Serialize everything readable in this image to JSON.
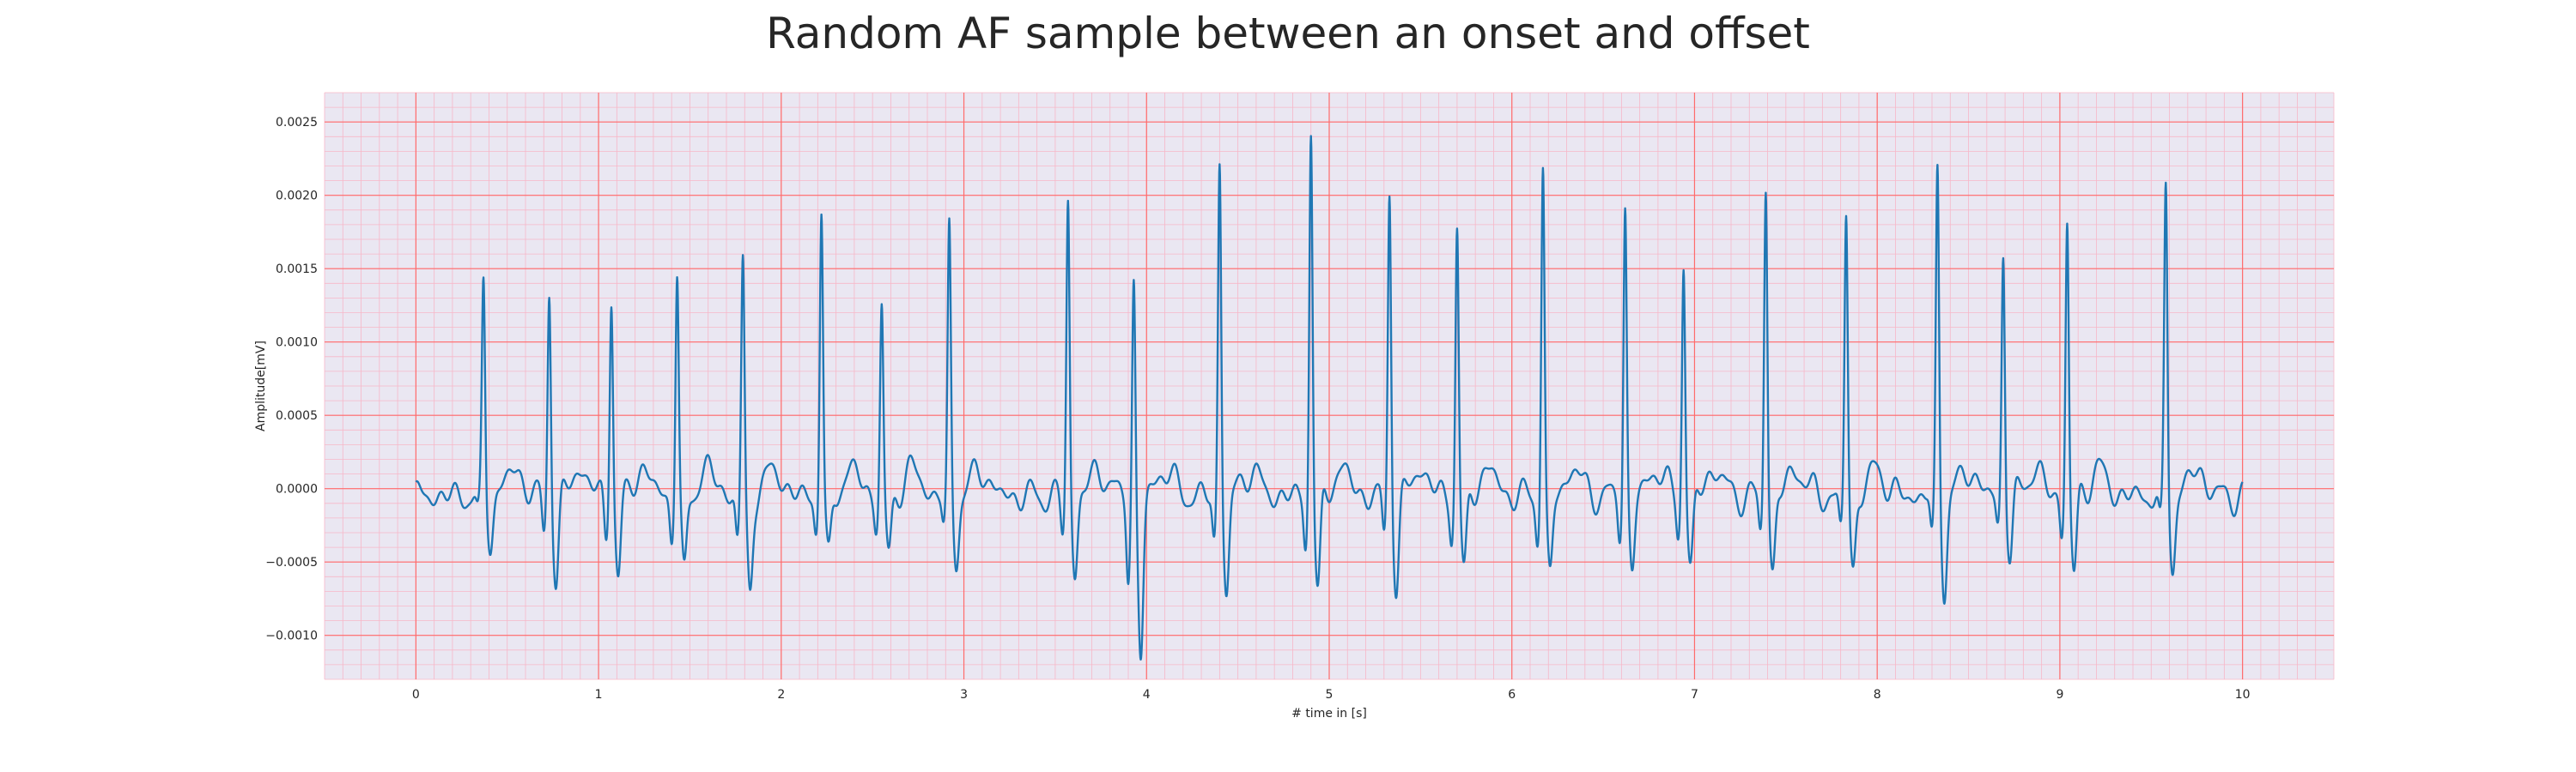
{
  "chart_data": {
    "type": "line",
    "title": "Random AF sample between an onset and offset",
    "xlabel": "# time in [s]",
    "ylabel": "Amplitude[mV]",
    "xlim": [
      -0.5,
      10.5
    ],
    "ylim": [
      -0.0013,
      0.0027
    ],
    "x_ticks": [
      0,
      1,
      2,
      3,
      4,
      5,
      6,
      7,
      8,
      9,
      10
    ],
    "x_tick_labels": [
      "0",
      "1",
      "2",
      "3",
      "4",
      "5",
      "6",
      "7",
      "8",
      "9",
      "10"
    ],
    "y_ticks": [
      -0.001,
      -0.0005,
      0.0,
      0.0005,
      0.001,
      0.0015,
      0.002,
      0.0025
    ],
    "y_tick_labels": [
      "−0.0010",
      "−0.0005",
      "0.0000",
      "0.0005",
      "0.0010",
      "0.0015",
      "0.0020",
      "0.0025"
    ],
    "grid": {
      "major": true,
      "minor": true,
      "major_color": "#ff6b6b",
      "minor_color": "#f7b7c8"
    },
    "background_color": "#eae7f2",
    "series": [
      {
        "color": "#1f77b4",
        "beats": [
          {
            "t": 0.37,
            "peak": 0.00139,
            "trough": -0.0003
          },
          {
            "t": 0.73,
            "peak": 0.00139,
            "trough": -0.00058
          },
          {
            "t": 1.07,
            "peak": 0.00136,
            "trough": -0.00058
          },
          {
            "t": 1.43,
            "peak": 0.00147,
            "trough": -0.00055
          },
          {
            "t": 1.79,
            "peak": 0.00155,
            "trough": -0.00064
          },
          {
            "t": 2.22,
            "peak": 0.00191,
            "trough": -0.00045
          },
          {
            "t": 2.55,
            "peak": 0.00123,
            "trough": -0.00042
          },
          {
            "t": 2.92,
            "peak": 0.00177,
            "trough": -0.00043
          },
          {
            "t": 3.57,
            "peak": 0.00198,
            "trough": -0.00053
          },
          {
            "t": 3.93,
            "peak": 0.00144,
            "trough": -0.00111
          },
          {
            "t": 4.4,
            "peak": 0.00227,
            "trough": -0.00067
          },
          {
            "t": 4.9,
            "peak": 0.00249,
            "trough": -0.0007
          },
          {
            "t": 5.33,
            "peak": 0.00207,
            "trough": -0.00062
          },
          {
            "t": 5.7,
            "peak": 0.00181,
            "trough": -0.00055
          },
          {
            "t": 6.17,
            "peak": 0.00222,
            "trough": -0.00057
          },
          {
            "t": 6.62,
            "peak": 0.00195,
            "trough": -0.00052
          },
          {
            "t": 6.94,
            "peak": 0.00156,
            "trough": -0.0005
          },
          {
            "t": 7.39,
            "peak": 0.0021,
            "trough": -0.00052
          },
          {
            "t": 7.83,
            "peak": 0.00189,
            "trough": -0.00051
          },
          {
            "t": 8.33,
            "peak": 0.00219,
            "trough": -0.00063
          },
          {
            "t": 8.69,
            "peak": 0.00163,
            "trough": -0.00042
          },
          {
            "t": 9.04,
            "peak": 0.00183,
            "trough": -0.00054
          },
          {
            "t": 9.58,
            "peak": 0.00207,
            "trough": -0.00046
          }
        ]
      }
    ]
  }
}
